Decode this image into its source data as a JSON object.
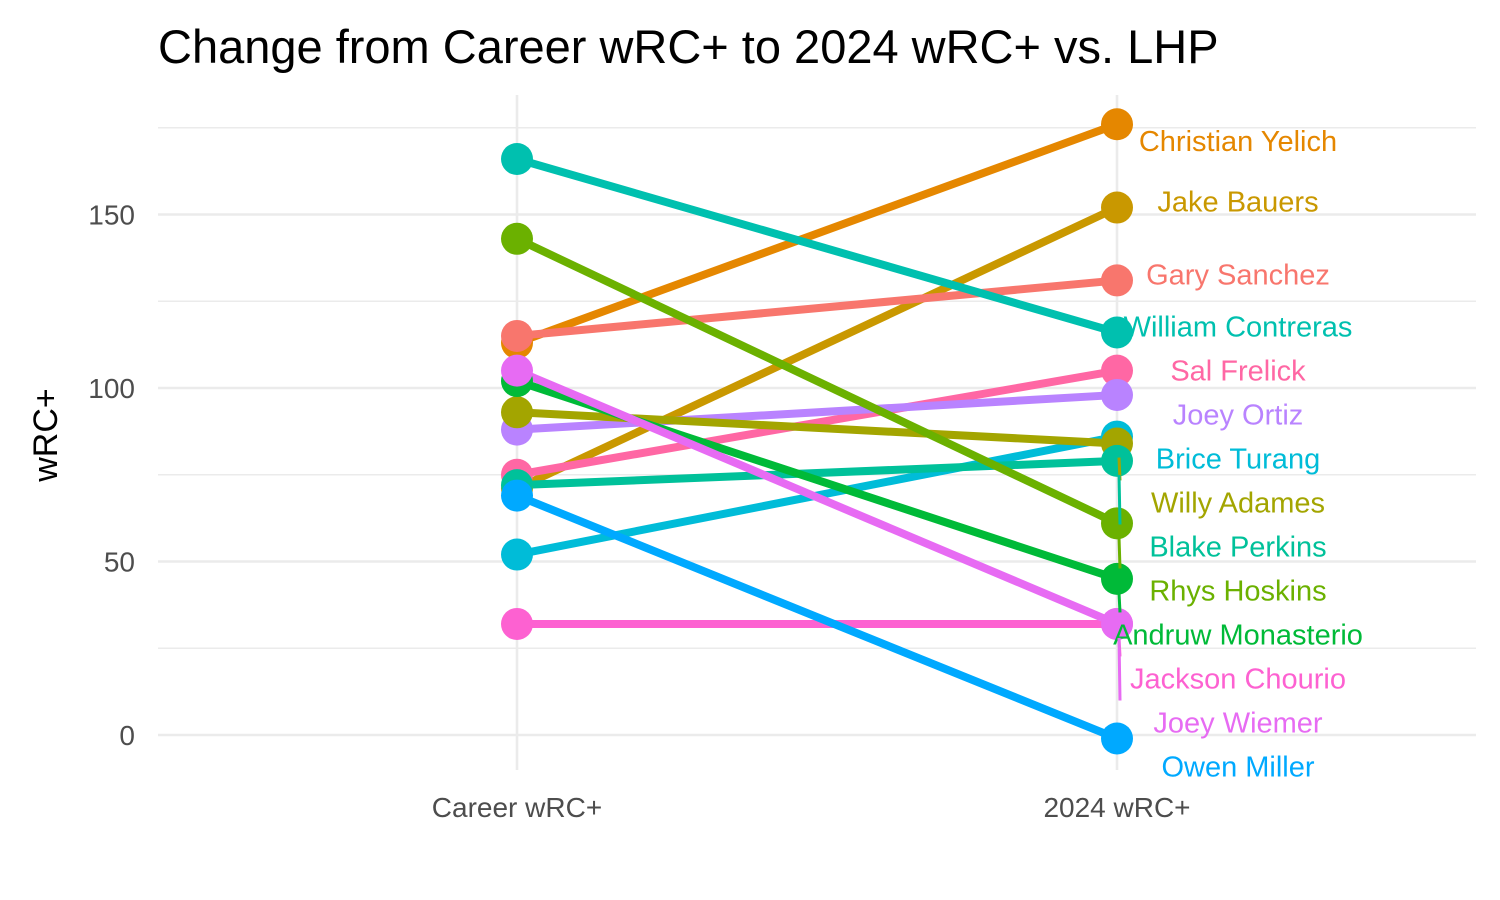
{
  "chart_data": {
    "type": "line",
    "title": "Change from Career wRC+ to 2024 wRC+ vs. LHP",
    "xlabel": "",
    "ylabel": "wRC+",
    "categories": [
      "Career wRC+",
      "2024 wRC+"
    ],
    "y_ticks": [
      0,
      50,
      100,
      150
    ],
    "ylim": [
      -8,
      182
    ],
    "grid": true,
    "legend": "none",
    "series": [
      {
        "name": "Christian Yelich",
        "values": [
          113,
          176
        ],
        "color": "#E58700"
      },
      {
        "name": "Jake Bauers",
        "values": [
          71,
          152
        ],
        "color": "#C99800"
      },
      {
        "name": "Gary Sanchez",
        "values": [
          115,
          131
        ],
        "color": "#F8766D"
      },
      {
        "name": "William Contreras",
        "values": [
          166,
          116
        ],
        "color": "#00C0AF"
      },
      {
        "name": "Sal Frelick",
        "values": [
          75,
          105
        ],
        "color": "#FF67A4"
      },
      {
        "name": "Joey Ortiz",
        "values": [
          88,
          98
        ],
        "color": "#B983FF"
      },
      {
        "name": "Brice Turang",
        "values": [
          52,
          86
        ],
        "color": "#00BCD8"
      },
      {
        "name": "Willy Adames",
        "values": [
          93,
          84
        ],
        "color": "#A3A500"
      },
      {
        "name": "Blake Perkins",
        "values": [
          72,
          79
        ],
        "color": "#00C19A"
      },
      {
        "name": "Rhys Hoskins",
        "values": [
          143,
          61
        ],
        "color": "#6BB100"
      },
      {
        "name": "Andruw Monasterio",
        "values": [
          102,
          45
        ],
        "color": "#00BA38"
      },
      {
        "name": "Jackson Chourio",
        "values": [
          32,
          32
        ],
        "color": "#FD61D1"
      },
      {
        "name": "Joey Wiemer",
        "values": [
          105,
          32
        ],
        "color": "#E76BF3"
      },
      {
        "name": "Owen Miller",
        "values": [
          69,
          -1
        ],
        "color": "#00A9FF"
      }
    ]
  }
}
